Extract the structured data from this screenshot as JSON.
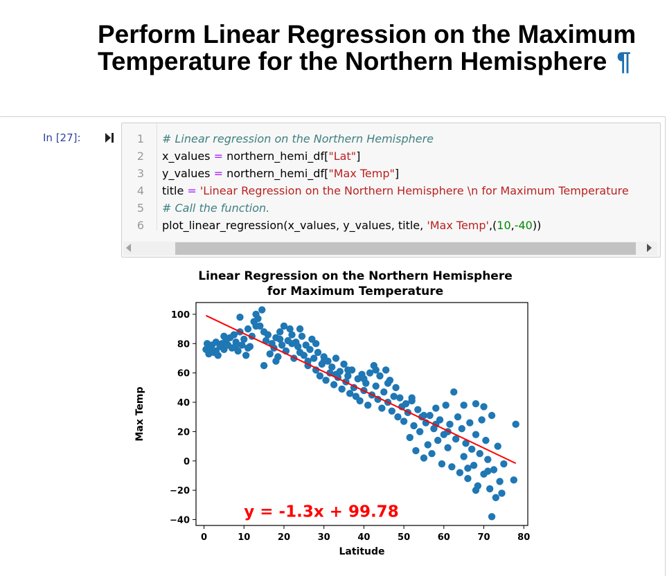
{
  "heading": {
    "title": "Perform Linear Regression on the Maximum Temperature for the Northern Hemisphere",
    "anchor": "¶"
  },
  "cell": {
    "prompt": "In [27]:",
    "lines": [
      {
        "num": "1",
        "tokens": [
          {
            "t": "# Linear regression on the Northern Hemisphere",
            "c": "comment"
          }
        ]
      },
      {
        "num": "2",
        "tokens": [
          {
            "t": "x_values ",
            "c": "var"
          },
          {
            "t": "=",
            "c": "op"
          },
          {
            "t": " northern_hemi_df[",
            "c": "var"
          },
          {
            "t": "\"Lat\"",
            "c": "string"
          },
          {
            "t": "]",
            "c": "var"
          }
        ]
      },
      {
        "num": "3",
        "tokens": [
          {
            "t": "y_values ",
            "c": "var"
          },
          {
            "t": "=",
            "c": "op"
          },
          {
            "t": " northern_hemi_df[",
            "c": "var"
          },
          {
            "t": "\"Max Temp\"",
            "c": "string"
          },
          {
            "t": "]",
            "c": "var"
          }
        ]
      },
      {
        "num": "4",
        "tokens": [
          {
            "t": "title ",
            "c": "var"
          },
          {
            "t": "=",
            "c": "op"
          },
          {
            "t": " ",
            "c": "var"
          },
          {
            "t": "'Linear Regression on the Northern Hemisphere \\n for Maximum Temperature",
            "c": "string"
          }
        ]
      },
      {
        "num": "5",
        "tokens": [
          {
            "t": "# Call the function.",
            "c": "comment"
          }
        ]
      },
      {
        "num": "6",
        "tokens": [
          {
            "t": "plot_linear_regression(x_values, y_values, title, ",
            "c": "var"
          },
          {
            "t": "'Max Temp'",
            "c": "string"
          },
          {
            "t": ",(",
            "c": "var"
          },
          {
            "t": "10",
            "c": "number"
          },
          {
            "t": ",",
            "c": "var"
          },
          {
            "t": "-40",
            "c": "number"
          },
          {
            "t": "))",
            "c": "var"
          }
        ]
      }
    ]
  },
  "chart_data": {
    "type": "scatter",
    "title_line1": "Linear Regression on the Northern Hemisphere",
    "title_line2": "for Maximum Temperature",
    "xlabel": "Latitude",
    "ylabel": "Max Temp",
    "xlim": [
      -2,
      81
    ],
    "ylim": [
      -44,
      108
    ],
    "xticks": [
      0,
      10,
      20,
      30,
      40,
      50,
      60,
      70,
      80
    ],
    "yticks": [
      -40,
      -20,
      0,
      20,
      40,
      60,
      80,
      100
    ],
    "point_color": "#1f77b4",
    "line_color": "#ff0000",
    "equation": "y = -1.3x + 99.78",
    "equation_pos": [
      10,
      -40
    ],
    "regression": {
      "slope": -1.3,
      "intercept": 99.78,
      "x_range": [
        0.5,
        78
      ]
    },
    "points": [
      [
        0.5,
        76
      ],
      [
        0.8,
        80
      ],
      [
        1.2,
        73
      ],
      [
        1.5,
        77
      ],
      [
        2,
        79
      ],
      [
        2.5,
        74
      ],
      [
        3,
        81
      ],
      [
        3.5,
        72
      ],
      [
        4,
        78
      ],
      [
        4.5,
        80
      ],
      [
        5,
        76
      ],
      [
        5.5,
        82
      ],
      [
        6,
        79
      ],
      [
        6.5,
        84
      ],
      [
        7,
        77
      ],
      [
        7.5,
        86
      ],
      [
        8,
        81
      ],
      [
        8.5,
        75
      ],
      [
        9,
        88
      ],
      [
        9.5,
        79
      ],
      [
        10,
        83
      ],
      [
        10.5,
        72
      ],
      [
        11,
        90
      ],
      [
        11.5,
        78
      ],
      [
        12,
        85
      ],
      [
        12.5,
        95
      ],
      [
        13,
        100
      ],
      [
        13.5,
        97
      ],
      [
        14,
        92
      ],
      [
        14.5,
        103
      ],
      [
        15,
        88
      ],
      [
        15.5,
        82
      ],
      [
        16,
        86
      ],
      [
        16.5,
        73
      ],
      [
        17,
        80
      ],
      [
        17.5,
        77
      ],
      [
        18,
        84
      ],
      [
        18.5,
        71
      ],
      [
        19,
        88
      ],
      [
        19.5,
        79
      ],
      [
        20,
        92
      ],
      [
        20.5,
        75
      ],
      [
        21,
        82
      ],
      [
        21.5,
        90
      ],
      [
        22,
        86
      ],
      [
        22.5,
        70
      ],
      [
        23,
        81
      ],
      [
        23.5,
        78
      ],
      [
        24,
        74
      ],
      [
        24.5,
        85
      ],
      [
        25,
        72
      ],
      [
        25.5,
        79
      ],
      [
        26,
        68
      ],
      [
        26.5,
        76
      ],
      [
        27,
        83
      ],
      [
        27.5,
        70
      ],
      [
        28,
        62
      ],
      [
        28.5,
        74
      ],
      [
        29,
        58
      ],
      [
        29.5,
        66
      ],
      [
        30,
        71
      ],
      [
        30.5,
        55
      ],
      [
        31,
        68
      ],
      [
        31.5,
        60
      ],
      [
        32,
        64
      ],
      [
        32.5,
        52
      ],
      [
        33,
        70
      ],
      [
        33.5,
        57
      ],
      [
        34,
        61
      ],
      [
        34.5,
        49
      ],
      [
        35,
        66
      ],
      [
        35.5,
        54
      ],
      [
        36,
        58
      ],
      [
        36.5,
        46
      ],
      [
        37,
        62
      ],
      [
        37.5,
        50
      ],
      [
        38,
        44
      ],
      [
        38.5,
        56
      ],
      [
        39,
        41
      ],
      [
        39.5,
        59
      ],
      [
        40,
        48
      ],
      [
        40.5,
        53
      ],
      [
        41,
        38
      ],
      [
        41.5,
        60
      ],
      [
        42,
        45
      ],
      [
        42.5,
        65
      ],
      [
        43,
        51
      ],
      [
        43.5,
        42
      ],
      [
        44,
        58
      ],
      [
        44.5,
        36
      ],
      [
        45,
        47
      ],
      [
        45.5,
        62
      ],
      [
        46,
        40
      ],
      [
        46.5,
        55
      ],
      [
        47,
        34
      ],
      [
        47.5,
        44
      ],
      [
        48,
        50
      ],
      [
        48.5,
        30
      ],
      [
        49,
        43
      ],
      [
        49.5,
        37
      ],
      [
        50,
        27
      ],
      [
        50.5,
        39
      ],
      [
        51,
        33
      ],
      [
        51.5,
        16
      ],
      [
        52,
        41
      ],
      [
        52.5,
        24
      ],
      [
        53,
        7
      ],
      [
        53.5,
        35
      ],
      [
        54,
        20
      ],
      [
        54.5,
        30
      ],
      [
        55,
        2
      ],
      [
        55.5,
        26
      ],
      [
        56,
        11
      ],
      [
        56.5,
        31
      ],
      [
        57,
        5
      ],
      [
        57.5,
        22
      ],
      [
        58,
        36
      ],
      [
        58.5,
        14
      ],
      [
        59,
        28
      ],
      [
        59.5,
        -2
      ],
      [
        60,
        18
      ],
      [
        60.5,
        38
      ],
      [
        61,
        9
      ],
      [
        61.5,
        25
      ],
      [
        62,
        -4
      ],
      [
        62.5,
        47
      ],
      [
        63,
        15
      ],
      [
        63.5,
        30
      ],
      [
        64,
        -8
      ],
      [
        64.5,
        22
      ],
      [
        65,
        3
      ],
      [
        65.5,
        12
      ],
      [
        66,
        -12
      ],
      [
        66.5,
        26
      ],
      [
        67,
        8
      ],
      [
        67.5,
        -3
      ],
      [
        68,
        18
      ],
      [
        68.5,
        -17
      ],
      [
        69,
        5
      ],
      [
        69.5,
        28
      ],
      [
        70,
        -9
      ],
      [
        70.5,
        14
      ],
      [
        71,
        1
      ],
      [
        71.5,
        -19
      ],
      [
        72,
        -38
      ],
      [
        72.5,
        -6
      ],
      [
        73,
        -25
      ],
      [
        73.5,
        10
      ],
      [
        74,
        -14
      ],
      [
        74.5,
        -22
      ],
      [
        75,
        -2
      ],
      [
        77.5,
        -13
      ],
      [
        78,
        25
      ],
      [
        15,
        65
      ],
      [
        18,
        68
      ],
      [
        22,
        80
      ],
      [
        26,
        65
      ],
      [
        33,
        59
      ],
      [
        36,
        62
      ],
      [
        40,
        56
      ],
      [
        43,
        62
      ],
      [
        46,
        53
      ],
      [
        52,
        43
      ],
      [
        55,
        31
      ],
      [
        58,
        25
      ],
      [
        61,
        20
      ],
      [
        65,
        38
      ],
      [
        68,
        39
      ],
      [
        70,
        37
      ],
      [
        72,
        31
      ],
      [
        66,
        -5
      ],
      [
        68,
        -20
      ],
      [
        71,
        -7
      ],
      [
        5,
        85
      ],
      [
        8,
        79
      ],
      [
        11,
        77
      ],
      [
        3,
        75
      ],
      [
        28,
        80
      ],
      [
        30,
        68
      ],
      [
        24,
        90
      ],
      [
        19,
        83
      ],
      [
        9,
        98
      ],
      [
        13,
        92
      ]
    ]
  }
}
